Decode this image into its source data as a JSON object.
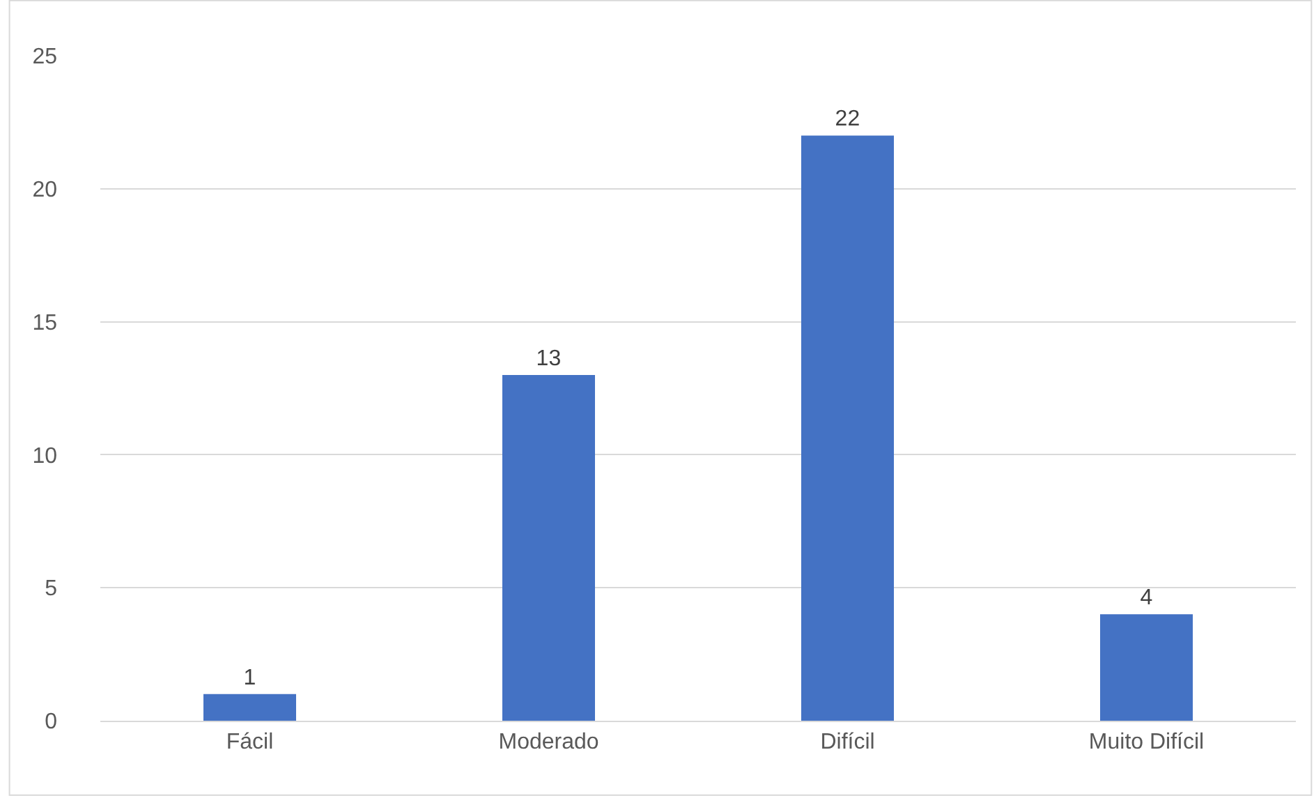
{
  "chart_data": {
    "type": "bar",
    "categories": [
      "Fácil",
      "Moderado",
      "Difícil",
      "Muito Difícil"
    ],
    "values": [
      1,
      13,
      22,
      4
    ],
    "color": "#4472c4",
    "ylim": [
      0,
      25
    ],
    "yticks": [
      0,
      5,
      10,
      15,
      20,
      25
    ],
    "grid": "y",
    "data_labels": true,
    "legend": false
  }
}
